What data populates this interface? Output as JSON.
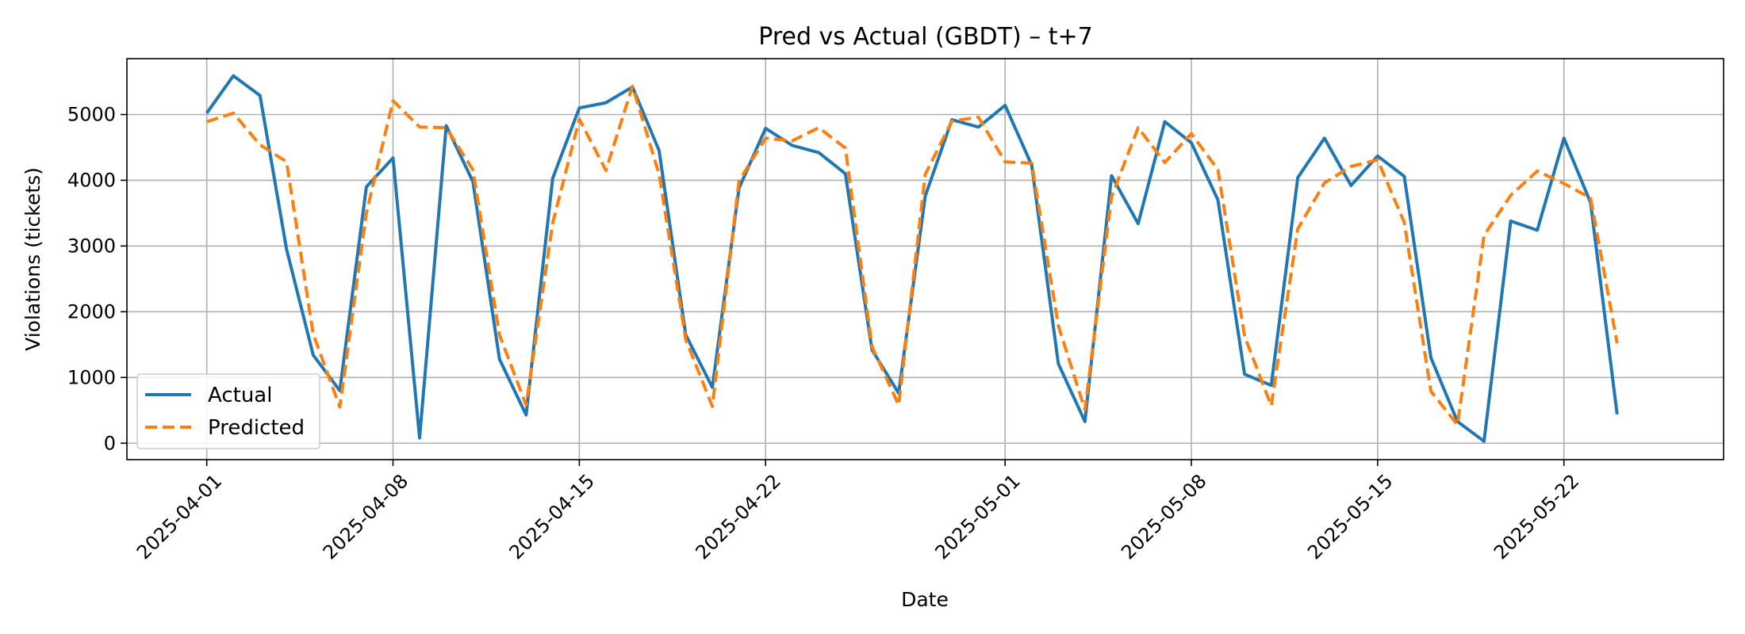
{
  "chart_data": {
    "type": "line",
    "title": "Pred vs Actual (GBDT) – t+7",
    "xlabel": "Date",
    "ylabel": "Violations (tickets)",
    "x_start": "2025-04-01",
    "x_end": "2025-05-25",
    "xlim": [
      "2025-03-29",
      "2025-05-28"
    ],
    "ylim": [
      -250,
      5850
    ],
    "y_ticks": [
      0,
      1000,
      2000,
      3000,
      4000,
      5000
    ],
    "y_tick_labels": [
      "0",
      "1000",
      "2000",
      "3000",
      "4000",
      "5000"
    ],
    "x_ticks": [
      "2025-04-01",
      "2025-04-08",
      "2025-04-15",
      "2025-04-22",
      "2025-05-01",
      "2025-05-08",
      "2025-05-15",
      "2025-05-22"
    ],
    "x_tick_labels": [
      "2025-04-01",
      "2025-04-08",
      "2025-04-15",
      "2025-04-22",
      "2025-05-01",
      "2025-05-08",
      "2025-05-15",
      "2025-05-22"
    ],
    "grid": true,
    "legend": "lower-left",
    "series": [
      {
        "name": "Actual",
        "color": "#1f77b4",
        "style": "solid",
        "values": [
          5020,
          5590,
          5290,
          2950,
          1340,
          800,
          3900,
          4340,
          80,
          4830,
          3980,
          1280,
          430,
          4030,
          5100,
          5180,
          5420,
          4450,
          1650,
          850,
          3880,
          4790,
          4530,
          4420,
          4100,
          1420,
          760,
          3760,
          4920,
          4810,
          5140,
          4230,
          1210,
          330,
          4070,
          3340,
          4890,
          4570,
          3700,
          1050,
          880,
          4040,
          4640,
          3920,
          4370,
          4060,
          1300,
          330,
          30,
          3380,
          3240,
          4640,
          3660,
          440
        ]
      },
      {
        "name": "Predicted",
        "color": "#ff7f0e",
        "style": "dashed",
        "values": [
          4890,
          5020,
          4540,
          4280,
          1660,
          550,
          3500,
          5210,
          4810,
          4800,
          4160,
          1650,
          580,
          3350,
          4930,
          4150,
          5430,
          4090,
          1580,
          560,
          3990,
          4640,
          4600,
          4800,
          4490,
          1470,
          580,
          4090,
          4900,
          4960,
          4280,
          4260,
          1790,
          510,
          3750,
          4800,
          4270,
          4710,
          4160,
          1630,
          570,
          3260,
          3960,
          4210,
          4310,
          3360,
          790,
          280,
          3160,
          3770,
          4140,
          3950,
          3730,
          1520
        ]
      }
    ]
  }
}
